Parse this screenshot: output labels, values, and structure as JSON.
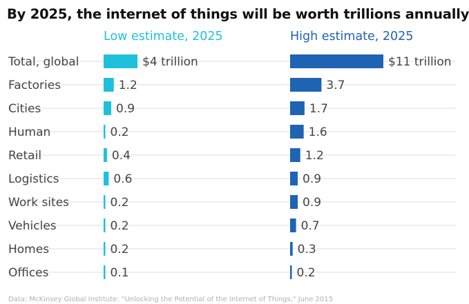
{
  "title": "By 2025, the internet of things will be worth trillions annually",
  "footnote": "Data: McKinsey Global Institute: \"Unlocking the Potential of the Internet of Things,\" June 2015",
  "colors": {
    "low": "#20c0dc",
    "high": "#1f63b3",
    "gridline": "#dddddd",
    "text": "#444444"
  },
  "chart_data": {
    "type": "bar",
    "categories": [
      "Total, global",
      "Factories",
      "Cities",
      "Human",
      "Retail",
      "Logistics",
      "Work sites",
      "Vehicles",
      "Homes",
      "Offices"
    ],
    "series": [
      {
        "name": "Low estimate, 2025",
        "values": [
          4,
          1.2,
          0.9,
          0.2,
          0.4,
          0.6,
          0.2,
          0.2,
          0.2,
          0.1
        ],
        "labels": [
          "$4 trillion",
          "1.2",
          "0.9",
          "0.2",
          "0.4",
          "0.6",
          "0.2",
          "0.2",
          "0.2",
          "0.1"
        ]
      },
      {
        "name": "High estimate, 2025",
        "values": [
          11,
          3.7,
          1.7,
          1.6,
          1.2,
          0.9,
          0.9,
          0.7,
          0.3,
          0.2
        ],
        "labels": [
          "$11 trillion",
          "3.7",
          "1.7",
          "1.6",
          "1.2",
          "0.9",
          "0.9",
          "0.7",
          "0.3",
          "0.2"
        ]
      }
    ],
    "unit": "trillion USD",
    "xlim": [
      0,
      11
    ],
    "grid": true,
    "legend": "column headers above each panel"
  }
}
